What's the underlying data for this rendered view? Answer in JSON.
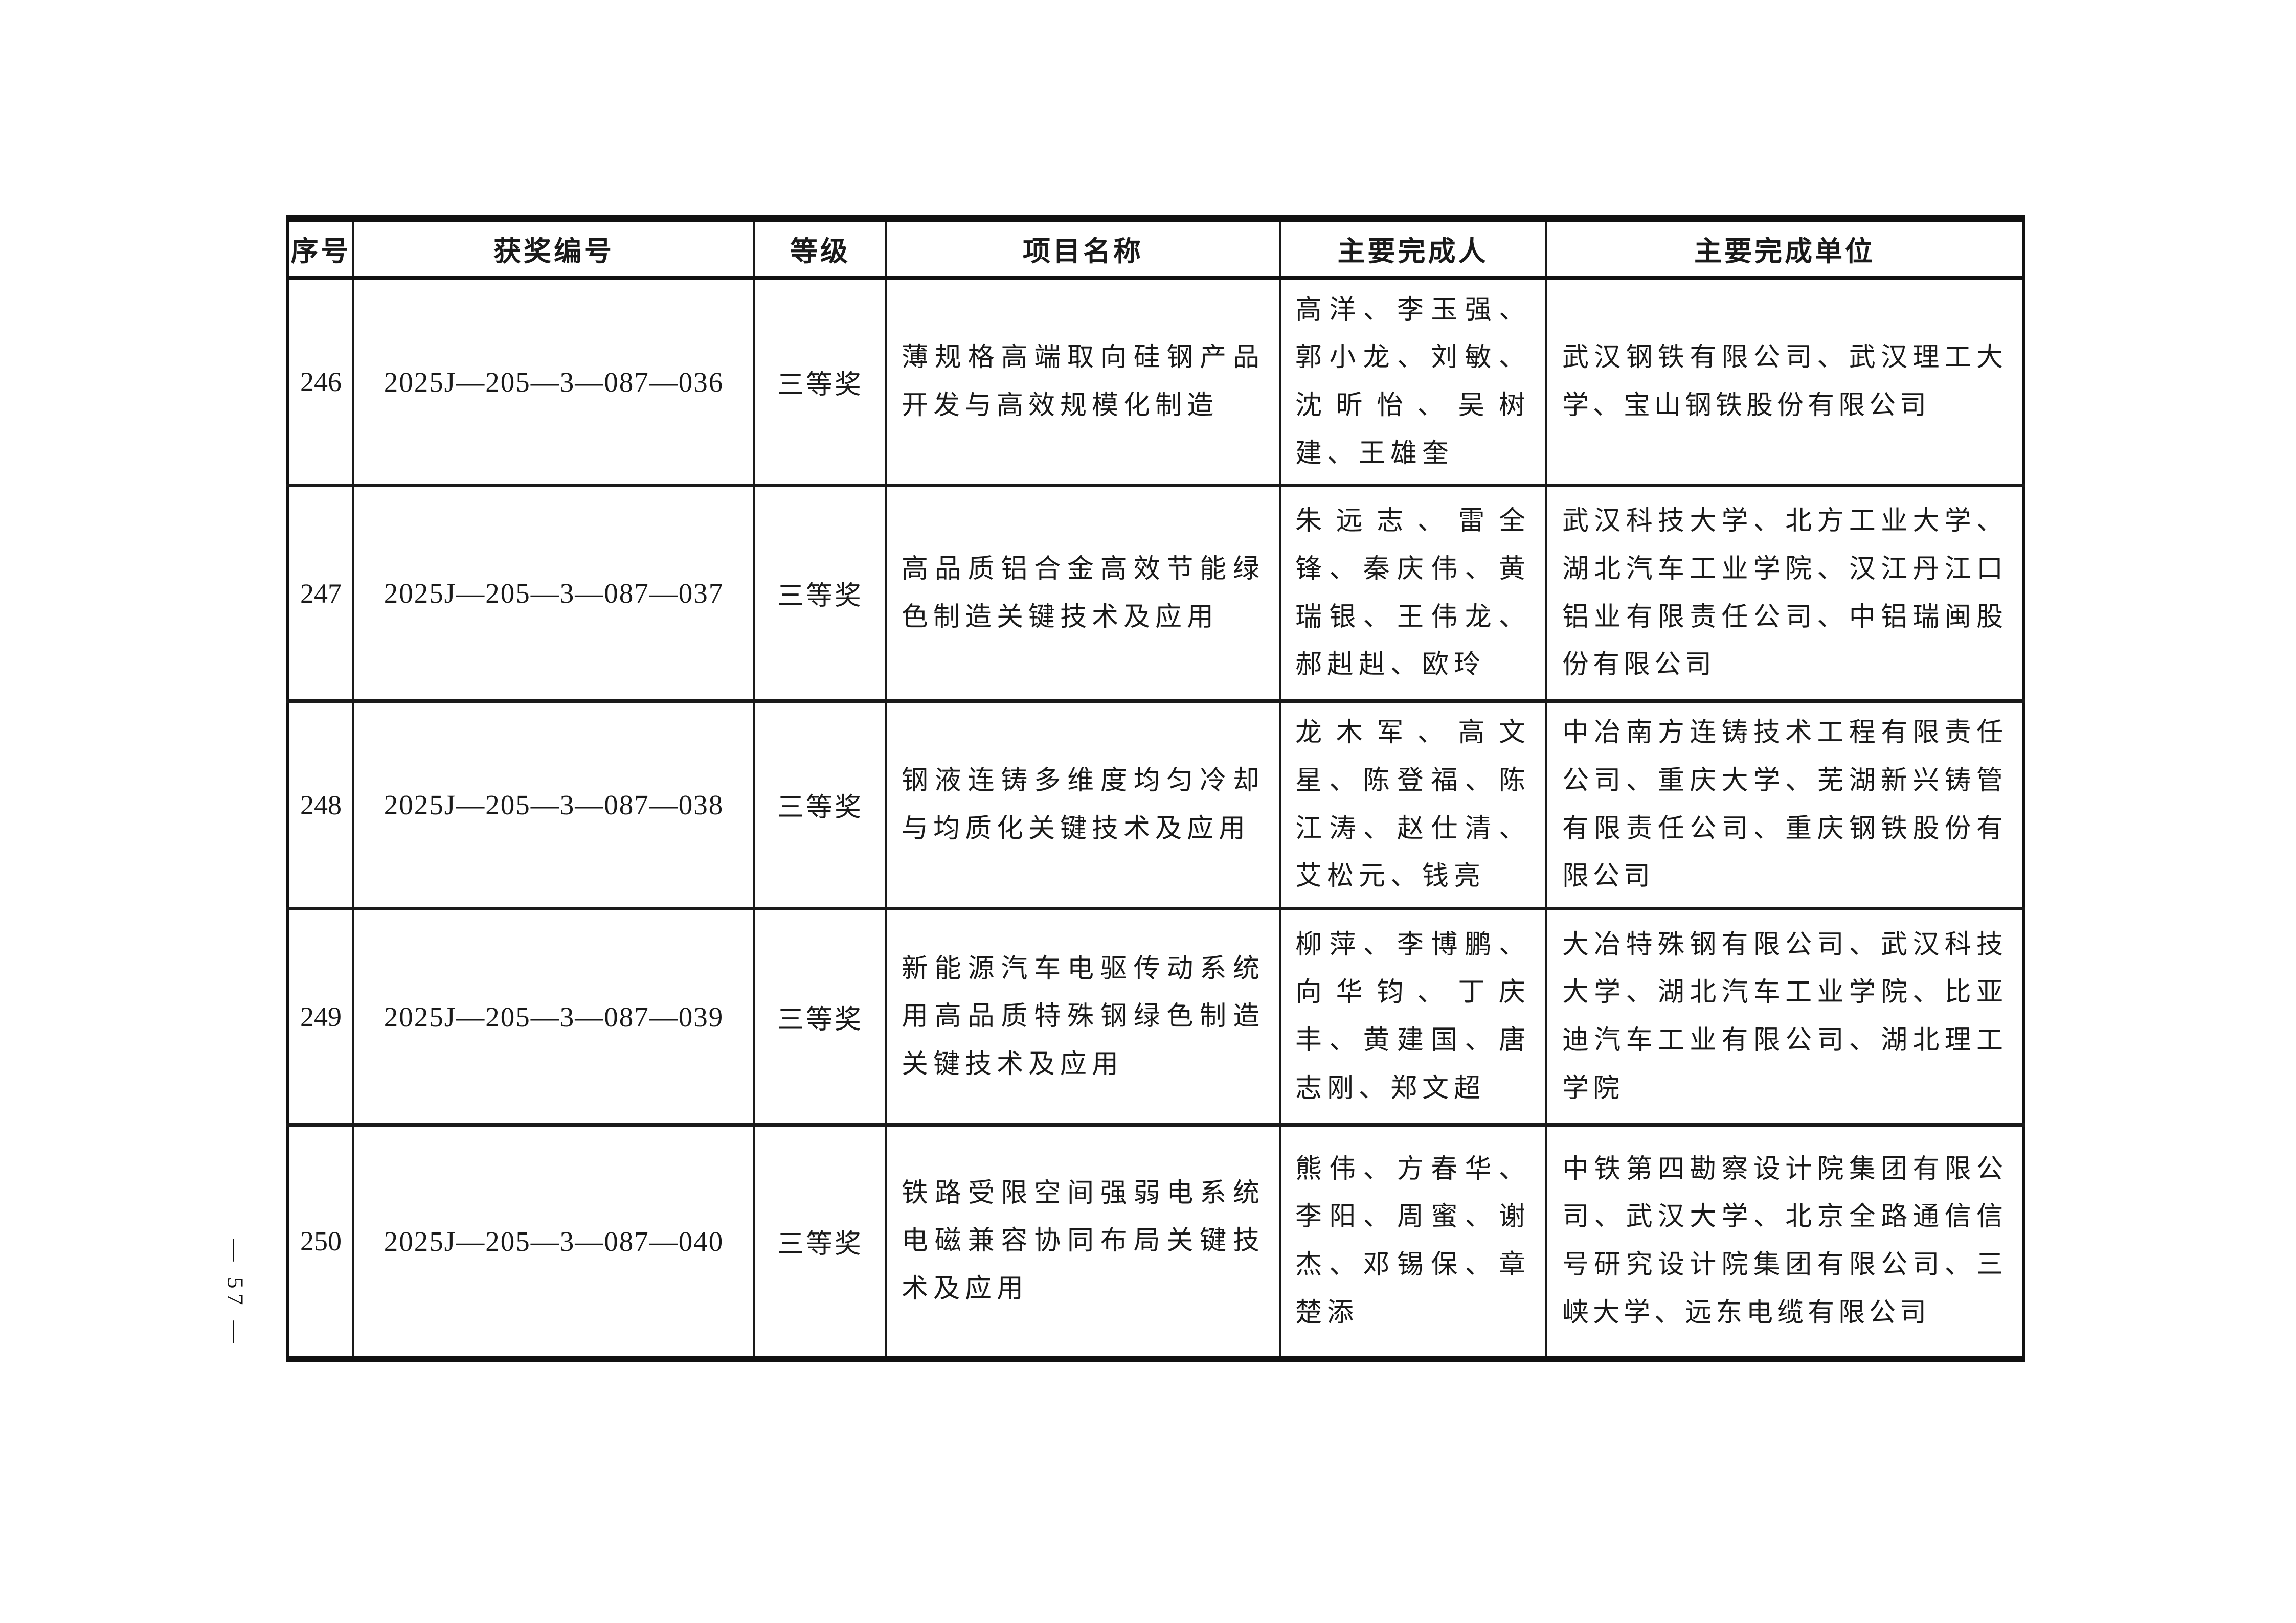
{
  "page": {
    "number_label": "— 57 —"
  },
  "table": {
    "columns": [
      {
        "key": "index",
        "label": "序号"
      },
      {
        "key": "award_no",
        "label": "获奖编号"
      },
      {
        "key": "grade",
        "label": "等级"
      },
      {
        "key": "project",
        "label": "项目名称"
      },
      {
        "key": "persons",
        "label": "主要完成人"
      },
      {
        "key": "units",
        "label": "主要完成单位"
      }
    ],
    "rows": [
      {
        "index": "246",
        "award_no": "2025J—205—3—087—036",
        "grade": "三等奖",
        "project": "薄规格高端取向硅钢产品开发与高效规模化制造",
        "persons": "高洋、李玉强、郭小龙、刘敏、沈昕怡、吴树建、王雄奎",
        "units": "武汉钢铁有限公司、武汉理工大学、宝山钢铁股份有限公司"
      },
      {
        "index": "247",
        "award_no": "2025J—205—3—087—037",
        "grade": "三等奖",
        "project": "高品质铝合金高效节能绿色制造关键技术及应用",
        "persons": "朱远志、雷全锋、秦庆伟、黄瑞银、王伟龙、郝赳赳、欧玲",
        "units": "武汉科技大学、北方工业大学、湖北汽车工业学院、汉江丹江口铝业有限责任公司、中铝瑞闽股份有限公司"
      },
      {
        "index": "248",
        "award_no": "2025J—205—3—087—038",
        "grade": "三等奖",
        "project": "钢液连铸多维度均匀冷却与均质化关键技术及应用",
        "persons": "龙木军、高文星、陈登福、陈江涛、赵仕清、艾松元、钱亮",
        "units": "中冶南方连铸技术工程有限责任公司、重庆大学、芜湖新兴铸管有限责任公司、重庆钢铁股份有限公司"
      },
      {
        "index": "249",
        "award_no": "2025J—205—3—087—039",
        "grade": "三等奖",
        "project": "新能源汽车电驱传动系统用高品质特殊钢绿色制造关键技术及应用",
        "persons": "柳萍、李博鹏、向华钧、丁庆丰、黄建国、唐志刚、郑文超",
        "units": "大冶特殊钢有限公司、武汉科技大学、湖北汽车工业学院、比亚迪汽车工业有限公司、湖北理工学院"
      },
      {
        "index": "250",
        "award_no": "2025J—205—3—087—040",
        "grade": "三等奖",
        "project": "铁路受限空间强弱电系统电磁兼容协同布局关键技术及应用",
        "persons": "熊伟、方春华、李阳、周蜜、谢杰、邓锡保、章楚添",
        "units": "中铁第四勘察设计院集团有限公司、武汉大学、北京全路通信信号研究设计院集团有限公司、三峡大学、远东电缆有限公司"
      }
    ]
  }
}
